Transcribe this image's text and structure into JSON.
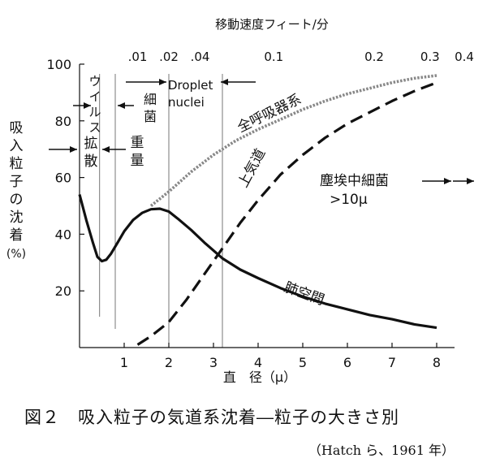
{
  "chart_data": {
    "type": "line",
    "title": "",
    "xlabel": "直　径（μ）",
    "ylabel": "吸入粒子の沈着（%）",
    "ylabel_chars": [
      "吸",
      "入",
      "粒",
      "子",
      "の",
      "沈",
      "着",
      "(%)"
    ],
    "top_axis_title": "移動速度フィート/分",
    "xlim": [
      0,
      8.4
    ],
    "ylim": [
      0,
      100
    ],
    "x_ticks": [
      1,
      2,
      3,
      4,
      5,
      6,
      7,
      8
    ],
    "x_tick_labels": [
      "1",
      "2",
      "3",
      "4",
      "5",
      "6",
      "7",
      "8"
    ],
    "y_ticks": [
      20,
      40,
      60,
      80,
      100
    ],
    "y_tick_labels": [
      "20",
      "40",
      "60",
      "80",
      "100"
    ],
    "top_ticks": [
      {
        "label": ".01",
        "x": 1.3
      },
      {
        "label": ".02",
        "x": 2.0
      },
      {
        "label": ".04",
        "x": 2.7
      },
      {
        "label": "0.1",
        "x": 4.35
      },
      {
        "label": "0.2",
        "x": 6.6
      },
      {
        "label": "0.3",
        "x": 7.85
      },
      {
        "label": "0.4",
        "x": 9.2
      }
    ],
    "reference_lines_x": [
      0.45,
      0.8,
      2.0,
      3.2
    ],
    "series": [
      {
        "name": "肺空間",
        "style": "solid",
        "color": "#111111",
        "x": [
          0.0,
          0.15,
          0.3,
          0.4,
          0.5,
          0.6,
          0.7,
          0.85,
          1.0,
          1.2,
          1.4,
          1.6,
          1.8,
          2.0,
          2.2,
          2.5,
          2.8,
          3.2,
          3.6,
          4.0,
          4.5,
          5.0,
          5.5,
          6.0,
          6.5,
          7.0,
          7.5,
          8.0
        ],
        "y": [
          54,
          45,
          37,
          32,
          30.5,
          31,
          33,
          37,
          41,
          45,
          47.5,
          48.8,
          49,
          48,
          45.5,
          41.5,
          37,
          31.5,
          27.5,
          24.5,
          21,
          18,
          15.5,
          13.5,
          11.5,
          10,
          8.2,
          7
        ]
      },
      {
        "name": "上気道",
        "style": "dashed",
        "color": "#111111",
        "x": [
          1.3,
          1.6,
          2.0,
          2.4,
          2.8,
          3.2,
          3.6,
          4.0,
          4.5,
          5.0,
          5.5,
          6.0,
          6.5,
          7.0,
          7.5,
          8.0
        ],
        "y": [
          1,
          4,
          9,
          17,
          26,
          35,
          44,
          52,
          61,
          68,
          74,
          79,
          83,
          87,
          90.5,
          93.5
        ]
      },
      {
        "name": "全呼吸器系",
        "style": "dotted",
        "color": "#888888",
        "x": [
          1.6,
          2.0,
          2.5,
          3.0,
          3.5,
          4.0,
          4.5,
          5.0,
          5.5,
          6.0,
          6.5,
          7.0,
          7.5,
          8.0
        ],
        "y": [
          50,
          55,
          62,
          68,
          73,
          77,
          80.5,
          84,
          87,
          89.5,
          91.5,
          93.5,
          95,
          96
        ]
      }
    ],
    "annotations": {
      "zenkokyu": "全呼吸器系",
      "joukidou": "上気道",
      "haikukan": "肺空間",
      "virus": "ウイルス",
      "saikin": "細菌",
      "kakusan": "拡散",
      "juuryou": "重量",
      "droplet_1": "Droplet",
      "droplet_2": "nuclei",
      "dust_1": "塵埃中細菌",
      "dust_2": ">10μ"
    }
  },
  "caption": "図２　吸入粒子の気道系沈着―粒子の大きさ別",
  "source": "（Hatch ら、1961 年）"
}
